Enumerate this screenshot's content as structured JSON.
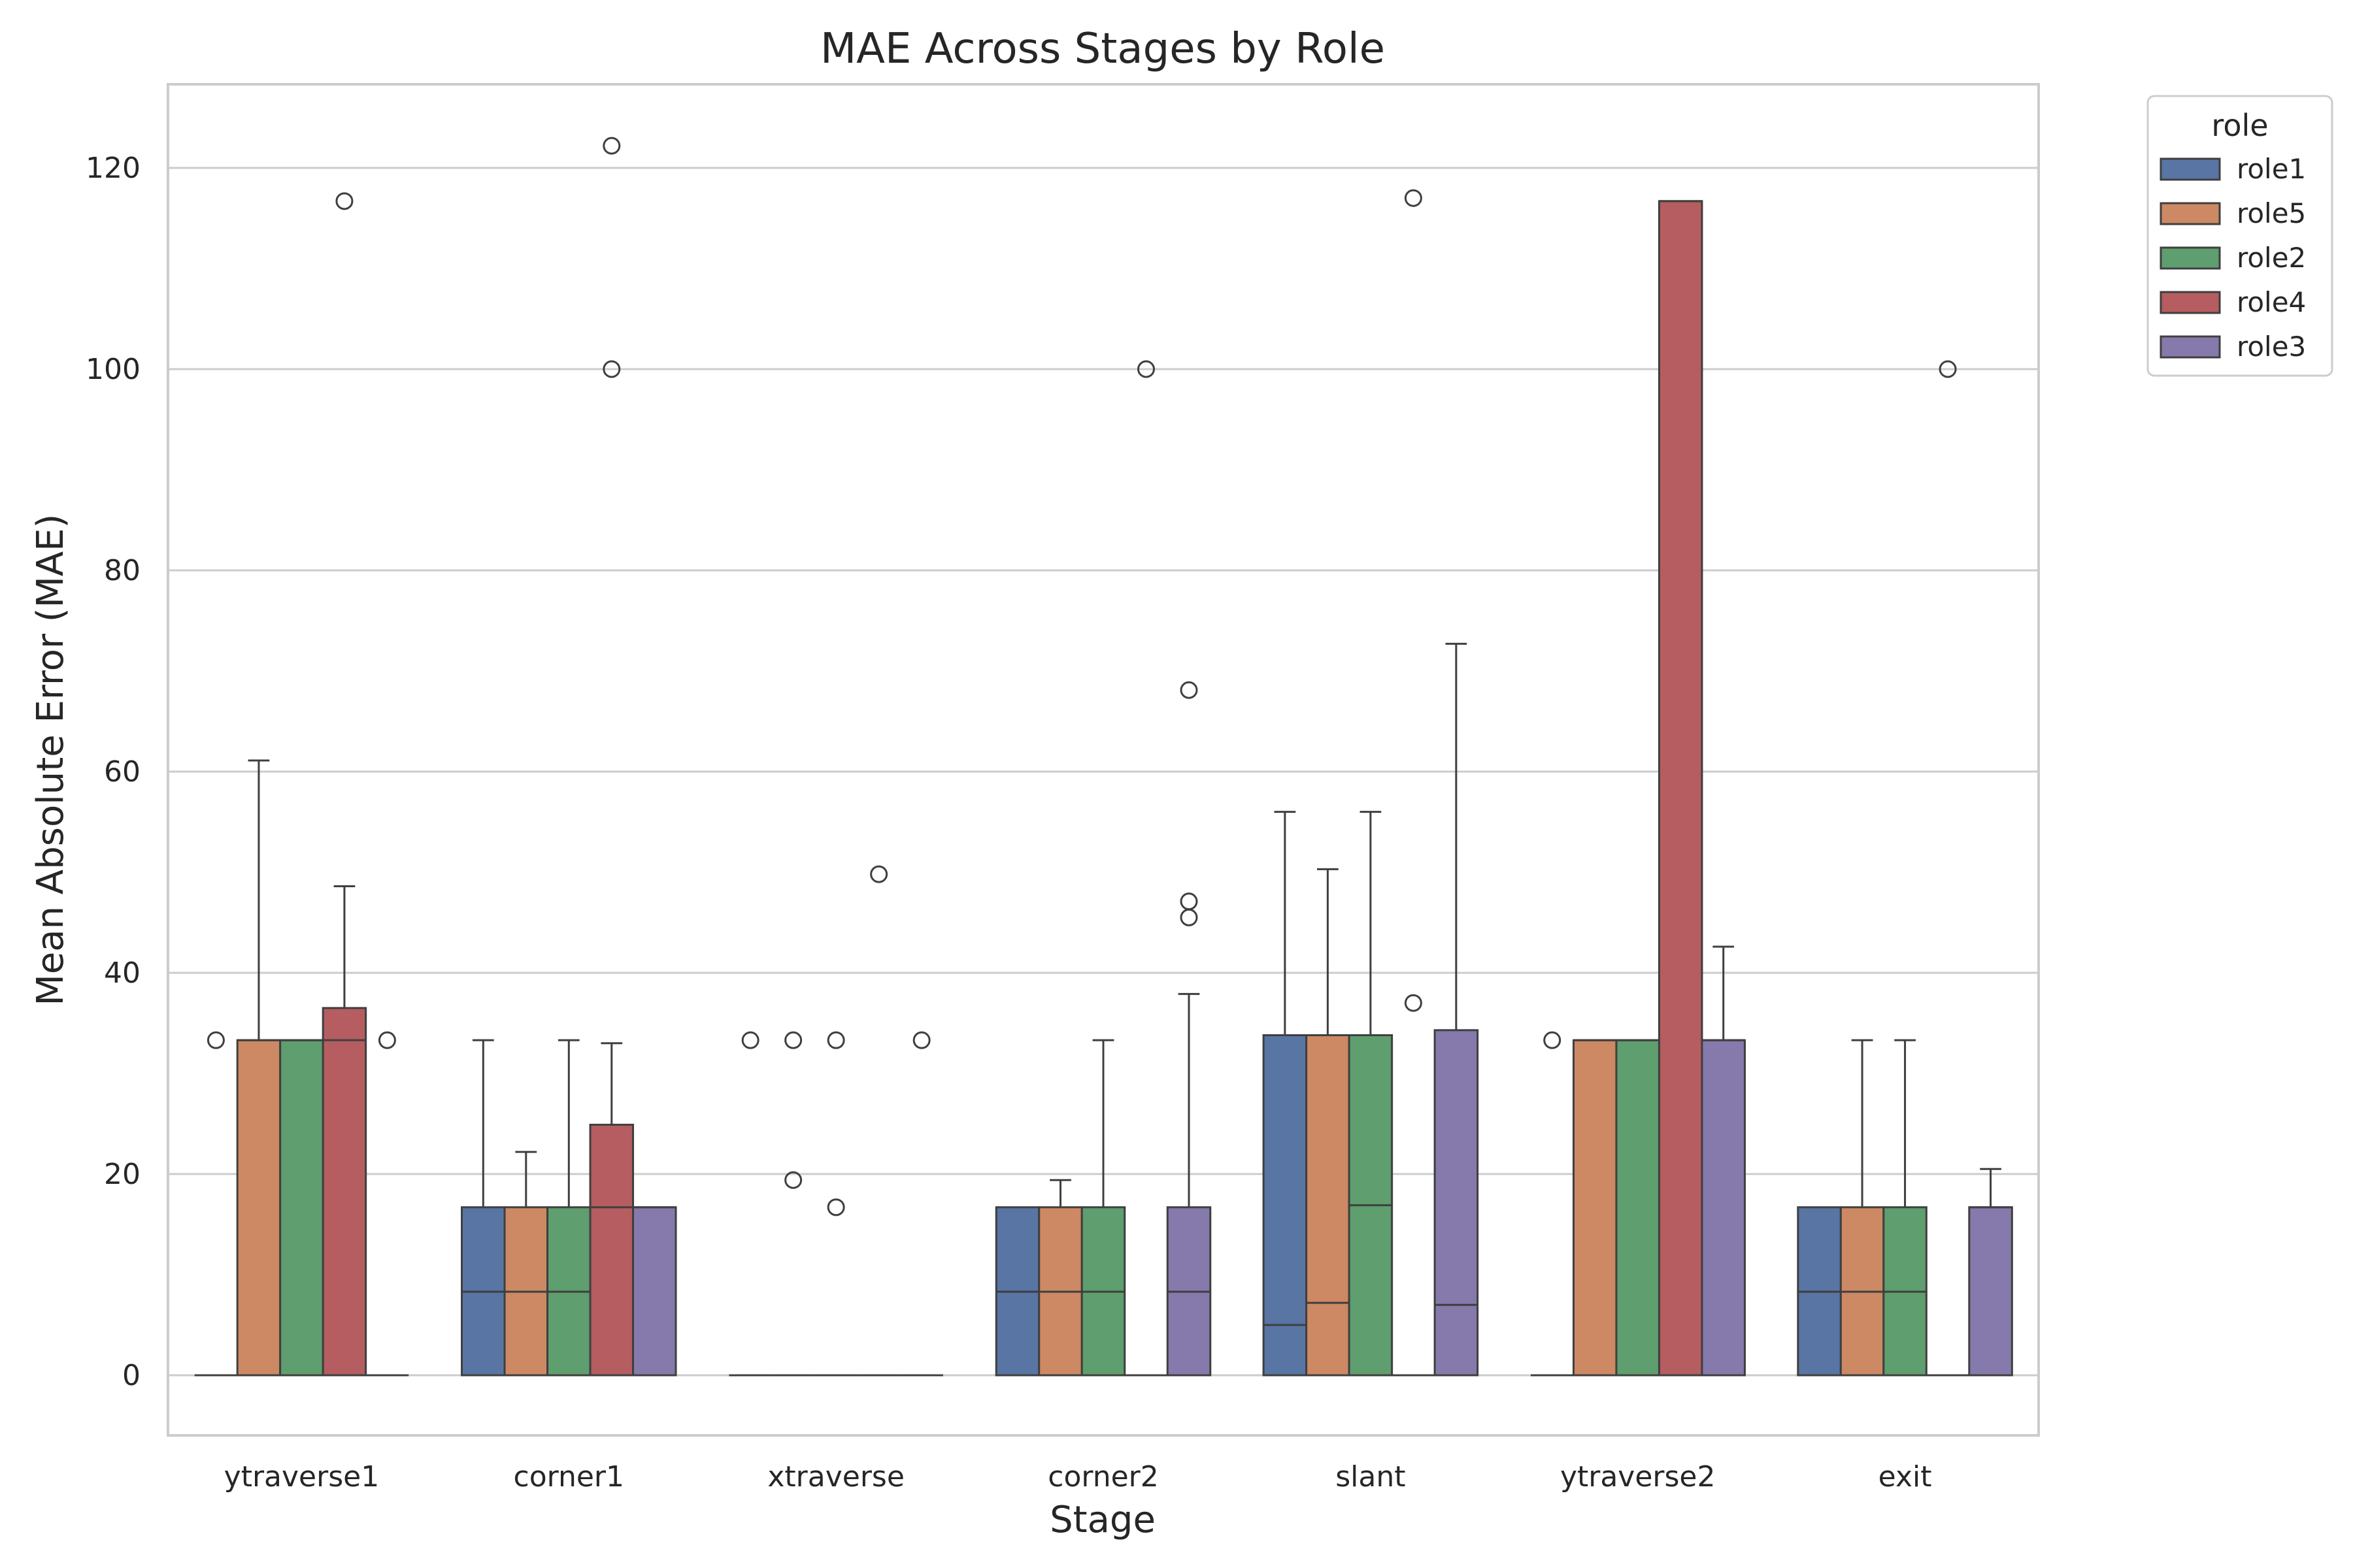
{
  "chart_data": {
    "type": "box",
    "title": "MAE Across Stages by Role",
    "xlabel": "Stage",
    "ylabel": "Mean Absolute Error (MAE)",
    "ylim": [
      -6,
      128
    ],
    "yticks": [
      0,
      20,
      40,
      60,
      80,
      100,
      120
    ],
    "grid": "horizontal",
    "legend": {
      "title": "role",
      "placement": "outside-top-right"
    },
    "categories": [
      "ytraverse1",
      "corner1",
      "xtraverse",
      "corner2",
      "slant",
      "ytraverse2",
      "exit"
    ],
    "series": [
      {
        "name": "role1",
        "color": "#5875a4",
        "boxes": [
          {
            "q1": 0,
            "median": 0,
            "q3": 0,
            "whisker_low": 0,
            "whisker_high": 0,
            "outliers": [
              33.3
            ]
          },
          {
            "q1": 0,
            "median": 8.3,
            "q3": 16.7,
            "whisker_low": 0,
            "whisker_high": 33.3,
            "outliers": []
          },
          {
            "q1": 0,
            "median": 0,
            "q3": 0,
            "whisker_low": 0,
            "whisker_high": 0,
            "outliers": [
              33.3
            ]
          },
          {
            "q1": 0,
            "median": 8.3,
            "q3": 16.7,
            "whisker_low": 0,
            "whisker_high": 16.7,
            "outliers": []
          },
          {
            "q1": 0,
            "median": 5,
            "q3": 33.8,
            "whisker_low": 0,
            "whisker_high": 56,
            "outliers": []
          },
          {
            "q1": 0,
            "median": 0,
            "q3": 0,
            "whisker_low": 0,
            "whisker_high": 0,
            "outliers": [
              33.3
            ]
          },
          {
            "q1": 0,
            "median": 8.3,
            "q3": 16.7,
            "whisker_low": 0,
            "whisker_high": 16.7,
            "outliers": []
          }
        ]
      },
      {
        "name": "role5",
        "color": "#cc8963",
        "boxes": [
          {
            "q1": 0,
            "median": 33.3,
            "q3": 33.3,
            "whisker_low": 0,
            "whisker_high": 61.1,
            "outliers": []
          },
          {
            "q1": 0,
            "median": 8.3,
            "q3": 16.7,
            "whisker_low": 0,
            "whisker_high": 22.2,
            "outliers": []
          },
          {
            "q1": 0,
            "median": 0,
            "q3": 0,
            "whisker_low": 0,
            "whisker_high": 0,
            "outliers": [
              33.3,
              19.4
            ]
          },
          {
            "q1": 0,
            "median": 8.3,
            "q3": 16.7,
            "whisker_low": 0,
            "whisker_high": 19.4,
            "outliers": []
          },
          {
            "q1": 0,
            "median": 7.2,
            "q3": 33.8,
            "whisker_low": 0,
            "whisker_high": 50.3,
            "outliers": []
          },
          {
            "q1": 0,
            "median": 33.3,
            "q3": 33.3,
            "whisker_low": 0,
            "whisker_high": 33.3,
            "outliers": []
          },
          {
            "q1": 0,
            "median": 8.3,
            "q3": 16.7,
            "whisker_low": 0,
            "whisker_high": 33.3,
            "outliers": []
          }
        ]
      },
      {
        "name": "role2",
        "color": "#5f9e6e",
        "boxes": [
          {
            "q1": 0,
            "median": 33.3,
            "q3": 33.3,
            "whisker_low": 0,
            "whisker_high": 33.3,
            "outliers": []
          },
          {
            "q1": 0,
            "median": 8.3,
            "q3": 16.7,
            "whisker_low": 0,
            "whisker_high": 33.3,
            "outliers": []
          },
          {
            "q1": 0,
            "median": 0,
            "q3": 0,
            "whisker_low": 0,
            "whisker_high": 0,
            "outliers": [
              33.3,
              16.7
            ]
          },
          {
            "q1": 0,
            "median": 8.3,
            "q3": 16.7,
            "whisker_low": 0,
            "whisker_high": 33.3,
            "outliers": []
          },
          {
            "q1": 0,
            "median": 16.9,
            "q3": 33.8,
            "whisker_low": 0,
            "whisker_high": 56,
            "outliers": []
          },
          {
            "q1": 0,
            "median": 33.3,
            "q3": 33.3,
            "whisker_low": 0,
            "whisker_high": 33.3,
            "outliers": []
          },
          {
            "q1": 0,
            "median": 8.3,
            "q3": 16.7,
            "whisker_low": 0,
            "whisker_high": 33.3,
            "outliers": []
          }
        ]
      },
      {
        "name": "role4",
        "color": "#b55d60",
        "boxes": [
          {
            "q1": 0,
            "median": 33.3,
            "q3": 36.5,
            "whisker_low": 0,
            "whisker_high": 48.6,
            "outliers": [
              116.7
            ]
          },
          {
            "q1": 0,
            "median": 16.7,
            "q3": 24.9,
            "whisker_low": 0,
            "whisker_high": 33.0,
            "outliers": [
              122.2,
              100
            ]
          },
          {
            "q1": 0,
            "median": 0,
            "q3": 0,
            "whisker_low": 0,
            "whisker_high": 0,
            "outliers": [
              49.8
            ]
          },
          {
            "q1": 0,
            "median": 0,
            "q3": 0,
            "whisker_low": 0,
            "whisker_high": 0,
            "outliers": [
              100
            ]
          },
          {
            "q1": 0,
            "median": 0,
            "q3": 0,
            "whisker_low": 0,
            "whisker_high": 0,
            "outliers": [
              117,
              37
            ]
          },
          {
            "q1": 0,
            "median": 116.7,
            "q3": 116.7,
            "whisker_low": 0,
            "whisker_high": 116.7,
            "outliers": []
          },
          {
            "q1": 0,
            "median": 0,
            "q3": 0,
            "whisker_low": 0,
            "whisker_high": 0,
            "outliers": [
              100
            ]
          }
        ]
      },
      {
        "name": "role3",
        "color": "#857aab",
        "boxes": [
          {
            "q1": 0,
            "median": 0,
            "q3": 0,
            "whisker_low": 0,
            "whisker_high": 0,
            "outliers": [
              33.3
            ]
          },
          {
            "q1": 0,
            "median": 16.7,
            "q3": 16.7,
            "whisker_low": 0,
            "whisker_high": 16.7,
            "outliers": []
          },
          {
            "q1": 0,
            "median": 0,
            "q3": 0,
            "whisker_low": 0,
            "whisker_high": 0,
            "outliers": [
              33.3
            ]
          },
          {
            "q1": 0,
            "median": 8.3,
            "q3": 16.7,
            "whisker_low": 0,
            "whisker_high": 37.9,
            "outliers": [
              68.1,
              47.1,
              45.5
            ]
          },
          {
            "q1": 0,
            "median": 7,
            "q3": 34.3,
            "whisker_low": 0,
            "whisker_high": 72.7,
            "outliers": []
          },
          {
            "q1": 0,
            "median": 33.3,
            "q3": 33.3,
            "whisker_low": 0,
            "whisker_high": 42.6,
            "outliers": []
          },
          {
            "q1": 0,
            "median": 16.7,
            "q3": 16.7,
            "whisker_low": 0,
            "whisker_high": 20.5,
            "outliers": []
          }
        ]
      }
    ]
  }
}
